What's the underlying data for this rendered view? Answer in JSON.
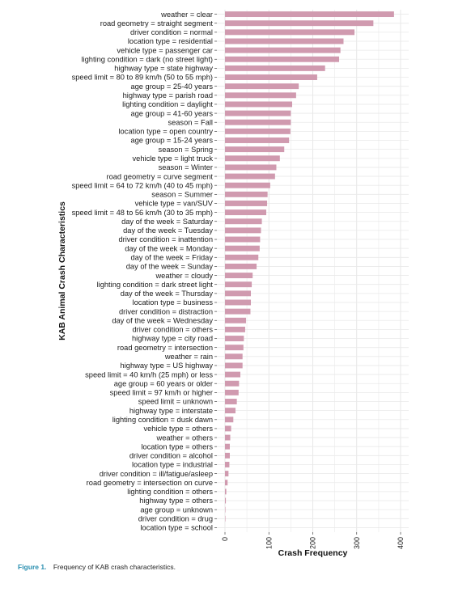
{
  "caption": {
    "label": "Figure 1.",
    "text": "Frequency of KAB crash characteristics."
  },
  "chart_data": {
    "type": "bar",
    "orientation": "horizontal",
    "title": "",
    "xlabel": "Crash Frequency",
    "ylabel": "KAB Animal Crash Characteristics",
    "xlim": [
      0,
      400
    ],
    "xticks": [
      0,
      100,
      200,
      300,
      400
    ],
    "grid": true,
    "bar_color": "#d09aaf",
    "categories": [
      "weather = clear",
      "road geometry = straight segment",
      "driver condition = normal",
      "location type = residential",
      "vehicle type = passenger car",
      "lighting condition = dark (no street light)",
      "highway type = state highway",
      "speed limit = 80 to 89 km/h (50 to 55 mph)",
      "age group = 25-40 years",
      "highway type = parish road",
      "lighting condition = daylight",
      "age group = 41-60 years",
      "season = Fall",
      "location type = open country",
      "age group = 15-24 years",
      "season = Spring",
      "vehicle type = light truck",
      "season = Winter",
      "road geometry = curve segment",
      "speed limit = 64 to 72 km/h (40 to 45 mph)",
      "season = Summer",
      "vehicle type = van/SUV",
      "speed limit = 48 to 56 km/h (30 to 35 mph)",
      "day of the week = Saturday",
      "day of the week = Tuesday",
      "driver condition = inattention",
      "day of the week = Monday",
      "day of the week = Friday",
      "day of the week = Sunday",
      "weather = cloudy",
      "lighting condition = dark street light",
      "day of the week = Thursday",
      "location type = business",
      "driver condition = distraction",
      "day of the week = Wednesday",
      "driver condition = others",
      "highway type = city road",
      "road geometry = intersection",
      "weather = rain",
      "highway type = US highway",
      "speed limit = 40 km/h (25 mph) or less",
      "age group = 60 years or older",
      "speed limit = 97 km/h or higher",
      "speed limit = unknown",
      "highway type = interstate",
      "lighting condition = dusk dawn",
      "vehicle type = others",
      "weather = others",
      "location type = others",
      "driver condition = alcohol",
      "location type = industrial",
      "driver condition = ill/fatigue/asleep",
      "road geometry = intersection on curve",
      "lighting condition = others",
      "highway type = others",
      "age group = unknown",
      "driver condition = drug",
      "location type = school"
    ],
    "values": [
      385,
      338,
      295,
      270,
      263,
      260,
      228,
      210,
      168,
      162,
      153,
      150,
      150,
      149,
      146,
      135,
      125,
      117,
      114,
      103,
      97,
      96,
      94,
      84,
      82,
      80,
      79,
      76,
      72,
      63,
      61,
      59,
      59,
      58,
      48,
      46,
      43,
      42,
      40,
      40,
      35,
      32,
      31,
      27,
      24,
      19,
      14,
      12,
      11,
      11,
      10,
      8,
      6,
      3,
      2,
      1,
      1,
      0
    ]
  }
}
